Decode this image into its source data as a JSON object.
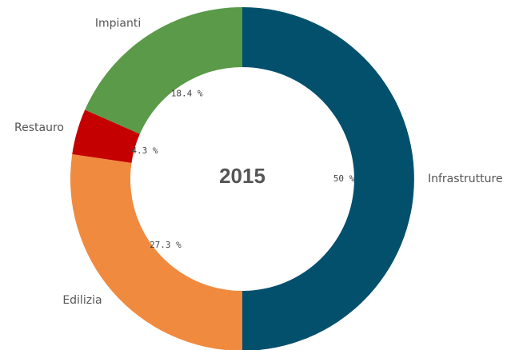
{
  "chart_data": {
    "type": "donut",
    "center_label": "2015",
    "categories": [
      "Infrastrutture",
      "Edilizia",
      "Restauro",
      "Impianti"
    ],
    "values": [
      50,
      27.3,
      4.3,
      18.4
    ],
    "value_labels": [
      "50 %",
      "27.3 %",
      "4.3 %",
      "18.4 %"
    ],
    "colors": [
      "#03506d",
      "#f08a3f",
      "#c40000",
      "#5b9a48"
    ]
  }
}
